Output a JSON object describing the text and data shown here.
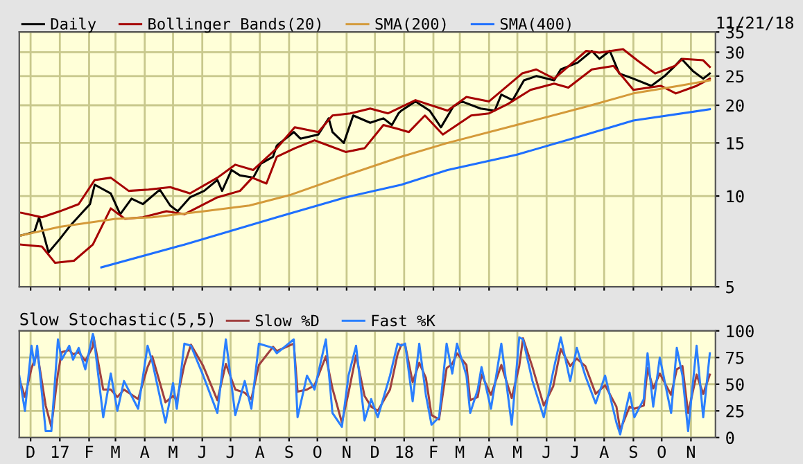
{
  "chart_data": [
    {
      "type": "line",
      "log": "y",
      "grid": true,
      "legend": "top",
      "tick_labels": "y",
      "annotations": [
        "11/21/18"
      ],
      "xlim": [
        "2016-11-19",
        "2018-11-27"
      ],
      "xticks": [
        {
          "value": "2016-12-01",
          "label": null
        },
        {
          "value": "2017-01-01",
          "label": null
        },
        {
          "value": "2017-02-01",
          "label": null
        },
        {
          "value": "2017-03-01",
          "label": null
        },
        {
          "value": "2017-04-01",
          "label": null
        },
        {
          "value": "2017-05-01",
          "label": null
        },
        {
          "value": "2017-06-01",
          "label": null
        },
        {
          "value": "2017-07-01",
          "label": null
        },
        {
          "value": "2017-08-01",
          "label": null
        },
        {
          "value": "2017-09-01",
          "label": null
        },
        {
          "value": "2017-10-01",
          "label": null
        },
        {
          "value": "2017-11-01",
          "label": null
        },
        {
          "value": "2017-12-01",
          "label": null
        },
        {
          "value": "2018-01-01",
          "label": null
        },
        {
          "value": "2018-02-01",
          "label": null
        },
        {
          "value": "2018-03-01",
          "label": null
        },
        {
          "value": "2018-04-01",
          "label": null
        },
        {
          "value": "2018-05-01",
          "label": null
        },
        {
          "value": "2018-06-01",
          "label": null
        },
        {
          "value": "2018-07-01",
          "label": null
        },
        {
          "value": "2018-08-01",
          "label": null
        },
        {
          "value": "2018-09-01",
          "label": null
        },
        {
          "value": "2018-10-01",
          "label": null
        },
        {
          "value": "2018-11-01",
          "label": null
        }
      ],
      "ylim": [
        5,
        35
      ],
      "yticks": [
        5,
        10,
        15,
        20,
        25,
        30,
        35
      ],
      "series": [
        {
          "name": "Daily",
          "color": "#000000",
          "x": [
            "2016-11-21",
            "2016-12-05",
            "2016-12-10",
            "2016-12-20",
            "2017-01-01",
            "2017-01-11",
            "2017-01-26",
            "2017-02-02",
            "2017-02-07",
            "2017-02-24",
            "2017-03-06",
            "2017-03-18",
            "2017-03-30",
            "2017-04-17",
            "2017-04-28",
            "2017-05-06",
            "2017-05-19",
            "2017-06-03",
            "2017-06-17",
            "2017-06-22",
            "2017-07-02",
            "2017-07-11",
            "2017-07-25",
            "2017-08-02",
            "2017-08-15",
            "2017-08-19",
            "2017-09-06",
            "2017-09-13",
            "2017-10-02",
            "2017-10-13",
            "2017-10-17",
            "2017-10-29",
            "2017-11-08",
            "2017-11-26",
            "2017-12-10",
            "2017-12-19",
            "2017-12-26",
            "2017-12-29",
            "2018-01-13",
            "2018-01-28",
            "2018-02-09",
            "2018-02-22",
            "2018-03-03",
            "2018-03-23",
            "2018-04-07",
            "2018-04-14",
            "2018-04-26",
            "2018-05-08",
            "2018-05-21",
            "2018-06-09",
            "2018-06-16",
            "2018-07-04",
            "2018-07-19",
            "2018-07-27",
            "2018-08-07",
            "2018-08-17",
            "2018-09-01",
            "2018-09-20",
            "2018-10-04",
            "2018-10-15",
            "2018-10-22",
            "2018-11-03",
            "2018-11-14",
            "2018-11-21"
          ],
          "values": [
            7.4,
            7.6,
            8.5,
            6.5,
            7.2,
            7.9,
            8.9,
            9.4,
            10.9,
            10.2,
            8.7,
            9.8,
            9.4,
            10.5,
            9.3,
            8.9,
            9.9,
            10.4,
            11.3,
            10.4,
            12.2,
            11.7,
            11.5,
            12.8,
            13.5,
            14.7,
            16.3,
            15.5,
            16.0,
            18.1,
            16.3,
            15.0,
            18.5,
            17.5,
            18.1,
            17.2,
            18.8,
            19.2,
            20.6,
            19.2,
            16.9,
            19.8,
            20.6,
            19.5,
            19.2,
            21.7,
            20.8,
            24.2,
            25.0,
            24.2,
            26.3,
            27.7,
            30.3,
            28.5,
            30.3,
            25.5,
            24.5,
            23.2,
            25.0,
            27.0,
            28.5,
            26.0,
            24.5,
            25.5
          ]
        },
        {
          "name": "Bollinger Bands(20)",
          "color": "#a50000",
          "x": [
            "2016-11-21",
            "2016-12-13",
            "2017-01-01",
            "2017-01-21",
            "2017-02-07",
            "2017-02-24",
            "2017-03-15",
            "2017-04-05",
            "2017-04-28",
            "2017-05-19",
            "2017-06-17",
            "2017-07-06",
            "2017-07-25",
            "2017-08-19",
            "2017-09-07",
            "2017-10-02",
            "2017-10-17",
            "2017-11-05",
            "2017-11-26",
            "2017-12-15",
            "2018-01-13",
            "2018-02-16",
            "2018-03-08",
            "2018-04-01",
            "2018-05-06",
            "2018-05-21",
            "2018-06-09",
            "2018-07-13",
            "2018-07-27",
            "2018-08-21",
            "2018-09-05",
            "2018-09-24",
            "2018-10-15",
            "2018-10-23",
            "2018-11-14",
            "2018-11-21"
          ],
          "values": [
            8.8,
            8.5,
            8.9,
            9.4,
            11.3,
            11.5,
            10.4,
            10.5,
            10.7,
            10.2,
            11.5,
            12.7,
            12.2,
            14.4,
            16.9,
            16.3,
            18.5,
            18.8,
            19.5,
            18.8,
            20.8,
            19.2,
            21.3,
            20.6,
            25.5,
            26.3,
            24.5,
            30.3,
            29.9,
            30.7,
            28.2,
            25.5,
            27.0,
            28.5,
            28.2,
            26.8
          ]
        },
        {
          "color": "#a50000",
          "x": [
            "2016-11-21",
            "2016-12-13",
            "2016-12-27",
            "2017-01-16",
            "2017-02-05",
            "2017-02-24",
            "2017-03-11",
            "2017-03-30",
            "2017-04-24",
            "2017-05-13",
            "2017-06-17",
            "2017-07-11",
            "2017-07-24",
            "2017-08-08",
            "2017-08-19",
            "2017-09-07",
            "2017-09-28",
            "2017-10-13",
            "2017-10-31",
            "2017-11-20",
            "2017-12-10",
            "2017-12-25",
            "2018-01-06",
            "2018-01-23",
            "2018-02-11",
            "2018-03-13",
            "2018-04-01",
            "2018-04-21",
            "2018-05-15",
            "2018-06-09",
            "2018-06-24",
            "2018-07-19",
            "2018-08-11",
            "2018-09-01",
            "2018-09-30",
            "2018-10-16",
            "2018-11-07",
            "2018-11-21"
          ],
          "values": [
            6.9,
            6.8,
            6.0,
            6.1,
            6.9,
            9.1,
            8.4,
            8.5,
            8.9,
            8.7,
            9.9,
            10.4,
            11.5,
            11.0,
            13.5,
            14.4,
            15.3,
            14.7,
            14.0,
            14.4,
            17.2,
            16.7,
            16.3,
            18.5,
            16.0,
            18.5,
            18.8,
            20.2,
            22.5,
            23.6,
            22.9,
            26.3,
            27.0,
            22.5,
            23.2,
            21.9,
            23.2,
            24.5
          ]
        },
        {
          "name": "SMA(200)",
          "color": "#d49a3a",
          "x": [
            "2016-11-21",
            "2017-01-01",
            "2017-03-01",
            "2017-04-09",
            "2017-06-03",
            "2017-07-21",
            "2017-09-03",
            "2017-10-31",
            "2017-12-29",
            "2018-02-16",
            "2018-04-30",
            "2018-07-13",
            "2018-09-01",
            "2018-10-19",
            "2018-11-21"
          ],
          "values": [
            7.4,
            7.9,
            8.4,
            8.5,
            8.9,
            9.3,
            10.1,
            11.7,
            13.5,
            15.0,
            17.2,
            19.8,
            21.9,
            23.2,
            24.2
          ]
        },
        {
          "name": "SMA(400)",
          "color": "#1e6fff",
          "x": [
            "2017-02-14",
            "2017-05-13",
            "2017-08-19",
            "2017-10-31",
            "2017-12-29",
            "2018-02-16",
            "2018-04-30",
            "2018-07-13",
            "2018-09-01",
            "2018-11-21"
          ],
          "values": [
            5.8,
            6.9,
            8.5,
            9.9,
            10.9,
            12.2,
            13.7,
            16.0,
            17.8,
            19.4
          ]
        }
      ]
    },
    {
      "type": "line",
      "title": "Slow Stochastic(5,5)",
      "grid": true,
      "legend": "top",
      "xlim": [
        "2016-11-19",
        "2018-11-27"
      ],
      "xticks": [
        {
          "value": "2016-12-01",
          "label": "D"
        },
        {
          "value": "2017-01-01",
          "label": "17"
        },
        {
          "value": "2017-02-01",
          "label": "F"
        },
        {
          "value": "2017-03-01",
          "label": "M"
        },
        {
          "value": "2017-04-01",
          "label": "A"
        },
        {
          "value": "2017-05-01",
          "label": "M"
        },
        {
          "value": "2017-06-01",
          "label": "J"
        },
        {
          "value": "2017-07-01",
          "label": "J"
        },
        {
          "value": "2017-08-01",
          "label": "A"
        },
        {
          "value": "2017-09-01",
          "label": "S"
        },
        {
          "value": "2017-10-01",
          "label": "O"
        },
        {
          "value": "2017-11-01",
          "label": "N"
        },
        {
          "value": "2017-12-01",
          "label": "D"
        },
        {
          "value": "2018-01-01",
          "label": "18"
        },
        {
          "value": "2018-02-01",
          "label": "F"
        },
        {
          "value": "2018-03-01",
          "label": "M"
        },
        {
          "value": "2018-04-01",
          "label": "A"
        },
        {
          "value": "2018-05-01",
          "label": "M"
        },
        {
          "value": "2018-06-01",
          "label": "J"
        },
        {
          "value": "2018-07-01",
          "label": "J"
        },
        {
          "value": "2018-08-01",
          "label": "A"
        },
        {
          "value": "2018-09-01",
          "label": "S"
        },
        {
          "value": "2018-10-01",
          "label": "O"
        },
        {
          "value": "2018-11-01",
          "label": "N"
        }
      ],
      "ylim": [
        0,
        100
      ],
      "yticks": [
        0,
        25,
        50,
        75,
        100
      ],
      "x": [
        "2016-11-19",
        "2016-11-25",
        "2016-12-02",
        "2016-12-05",
        "2016-12-08",
        "2016-12-17",
        "2016-12-23",
        "2016-12-30",
        "2017-01-03",
        "2017-01-11",
        "2017-01-15",
        "2017-01-21",
        "2017-01-28",
        "2017-02-05",
        "2017-02-06",
        "2017-02-16",
        "2017-02-24",
        "2017-03-03",
        "2017-03-10",
        "2017-03-25",
        "2017-04-04",
        "2017-04-09",
        "2017-04-23",
        "2017-05-01",
        "2017-05-05",
        "2017-05-13",
        "2017-05-20",
        "2017-06-02",
        "2017-06-17",
        "2017-06-26",
        "2017-07-06",
        "2017-07-16",
        "2017-07-23",
        "2017-07-31",
        "2017-08-15",
        "2017-08-19",
        "2017-09-06",
        "2017-09-10",
        "2017-09-20",
        "2017-09-28",
        "2017-10-10",
        "2017-10-17",
        "2017-10-27",
        "2017-11-03",
        "2017-11-11",
        "2017-11-20",
        "2017-11-27",
        "2017-12-04",
        "2017-12-17",
        "2017-12-25",
        "2017-12-29",
        "2018-01-02",
        "2018-01-10",
        "2018-01-17",
        "2018-01-24",
        "2018-01-30",
        "2018-02-07",
        "2018-02-15",
        "2018-02-21",
        "2018-02-26",
        "2018-03-08",
        "2018-03-12",
        "2018-03-20",
        "2018-03-24",
        "2018-04-03",
        "2018-04-14",
        "2018-04-25",
        "2018-05-03",
        "2018-05-07",
        "2018-05-17",
        "2018-05-29",
        "2018-06-08",
        "2018-06-16",
        "2018-06-26",
        "2018-07-03",
        "2018-07-12",
        "2018-07-23",
        "2018-08-02",
        "2018-08-14",
        "2018-08-18",
        "2018-08-28",
        "2018-09-02",
        "2018-09-12",
        "2018-09-16",
        "2018-09-22",
        "2018-09-29",
        "2018-10-11",
        "2018-10-17",
        "2018-10-23",
        "2018-10-29",
        "2018-11-07",
        "2018-11-14",
        "2018-11-21"
      ],
      "series": [
        {
          "name": "Slow %D",
          "color": "#a04040",
          "values": [
            55,
            38,
            65,
            72,
            80,
            30,
            10,
            60,
            80,
            82,
            78,
            80,
            72,
            85,
            93,
            45,
            45,
            38,
            45,
            36,
            66,
            76,
            33,
            39,
            35,
            68,
            87,
            67,
            35,
            69,
            45,
            42,
            36,
            68,
            85,
            81,
            88,
            43,
            45,
            49,
            76,
            46,
            14,
            42,
            77,
            39,
            29,
            25,
            45,
            78,
            87,
            87,
            52,
            70,
            56,
            21,
            17,
            65,
            69,
            79,
            68,
            35,
            38,
            59,
            40,
            68,
            37,
            67,
            93,
            66,
            30,
            48,
            83,
            67,
            74,
            67,
            41,
            49,
            29,
            7,
            29,
            27,
            30,
            65,
            46,
            60,
            40,
            64,
            67,
            23,
            59,
            41,
            59
          ]
        },
        {
          "name": "Fast %K",
          "color": "#2a7fff",
          "values": [
            58,
            25,
            86,
            68,
            86,
            6,
            6,
            92,
            73,
            86,
            73,
            84,
            64,
            97,
            94,
            19,
            60,
            25,
            53,
            27,
            86,
            71,
            14,
            51,
            27,
            88,
            86,
            58,
            23,
            92,
            21,
            53,
            27,
            88,
            84,
            79,
            92,
            19,
            58,
            45,
            92,
            23,
            10,
            58,
            86,
            16,
            36,
            19,
            58,
            88,
            86,
            88,
            34,
            88,
            40,
            12,
            19,
            88,
            60,
            88,
            58,
            23,
            45,
            66,
            27,
            88,
            12,
            94,
            92,
            53,
            19,
            62,
            94,
            53,
            84,
            58,
            32,
            58,
            14,
            3,
            42,
            19,
            36,
            79,
            29,
            75,
            23,
            84,
            58,
            6,
            86,
            19,
            79
          ]
        }
      ]
    }
  ]
}
